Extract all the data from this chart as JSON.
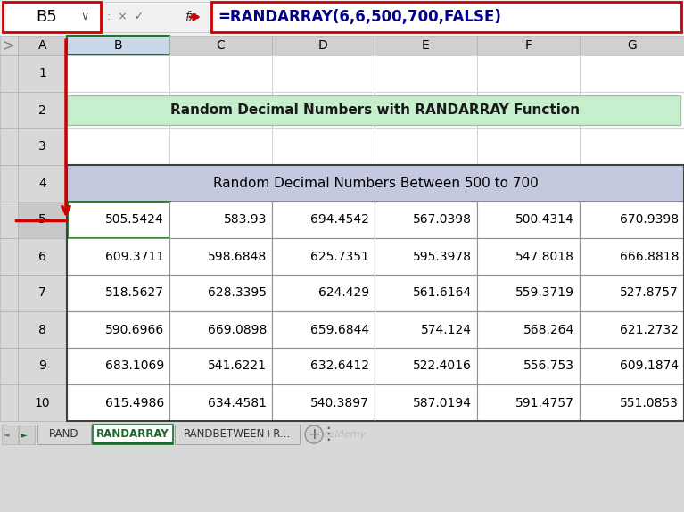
{
  "formula_bar_cell": "B5",
  "formula_bar_formula": "=RANDARRAY(6,6,500,700,FALSE)",
  "title_text": "Random Decimal Numbers with RANDARRAY Function",
  "title_bg": "#c6efce",
  "table_header": "Random Decimal Numbers Between 500 to 700",
  "table_header_bg": "#c5c9e0",
  "col_headers": [
    "A",
    "B",
    "C",
    "D",
    "E",
    "F",
    "G"
  ],
  "row_numbers": [
    "1",
    "2",
    "3",
    "4",
    "5",
    "6",
    "7",
    "8",
    "9",
    "10"
  ],
  "table_data": [
    [
      "505.5424",
      "583.93",
      "694.4542",
      "567.0398",
      "500.4314",
      "670.9398"
    ],
    [
      "609.3711",
      "598.6848",
      "625.7351",
      "595.3978",
      "547.8018",
      "666.8818"
    ],
    [
      "518.5627",
      "628.3395",
      "624.429",
      "561.6164",
      "559.3719",
      "527.8757"
    ],
    [
      "590.6966",
      "669.0898",
      "659.6844",
      "574.124",
      "568.264",
      "621.2732"
    ],
    [
      "683.1069",
      "541.6221",
      "632.6412",
      "522.4016",
      "556.753",
      "609.1874"
    ],
    [
      "615.4986",
      "634.4581",
      "540.3897",
      "587.0194",
      "591.4757",
      "551.0853"
    ]
  ],
  "tab_labels": [
    "RAND",
    "RANDARRAY",
    "RANDBETWEEN+R..."
  ],
  "active_tab": "RANDARRAY",
  "bg_color": "#e8e8e8",
  "spreadsheet_bg": "#ffffff",
  "col_header_bg": "#d0d0d0",
  "row_header_bg": "#e0e0e0",
  "active_col_header_bg": "#c8d8e8",
  "active_cell_border": "#1a7a1a",
  "red_arrow_color": "#cc0000",
  "formula_box_border": "#cc0000",
  "cell_border_color": "#b0b0b0",
  "tab_active_color": "#1a6b2a",
  "tab_inactive_color": "#333333",
  "formula_text_color": "#00008b"
}
